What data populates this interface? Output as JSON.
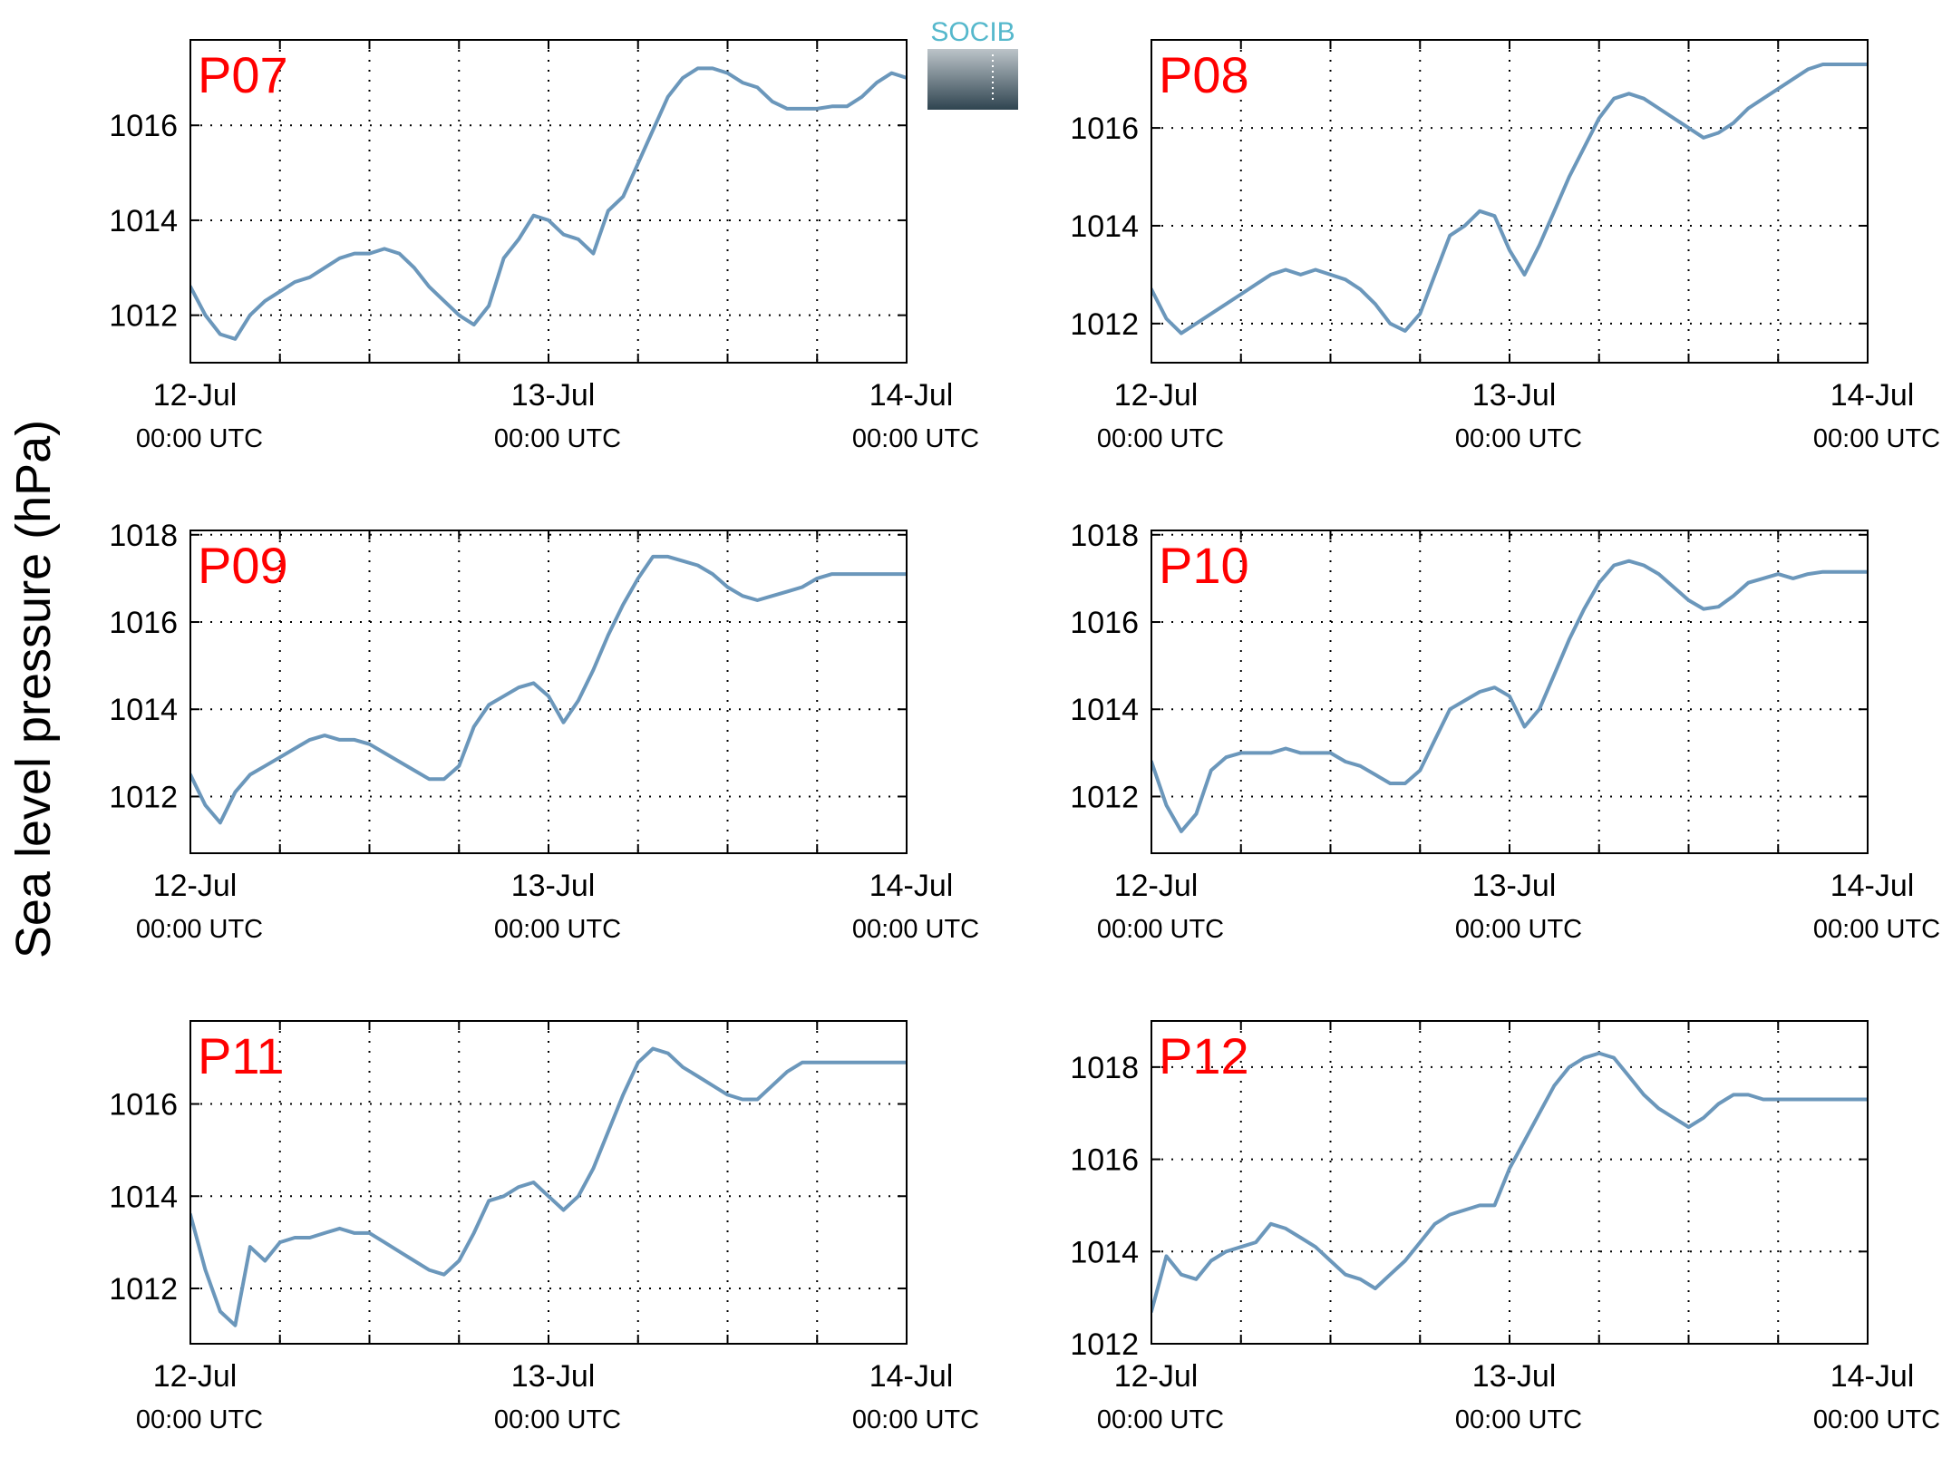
{
  "figure": {
    "ylabel": "Sea level pressure (hPa)",
    "label_color": "#ff0000",
    "line_color": "#6b97bb"
  },
  "logo": {
    "text": "SOCIB"
  },
  "chart_data": [
    {
      "type": "line",
      "label": "P07",
      "ylim": [
        1011,
        1017.8
      ],
      "yticks": [
        1012,
        1014,
        1016
      ],
      "x_hours": [
        0,
        2,
        4,
        6,
        8,
        10,
        12,
        14,
        16,
        18,
        20,
        22,
        24,
        26,
        28,
        30,
        32,
        34,
        36,
        38,
        40,
        42,
        44,
        46,
        48,
        50,
        52,
        54,
        56,
        58,
        60,
        62,
        64,
        66,
        68,
        70,
        72,
        74,
        76,
        78,
        80,
        82,
        84,
        86,
        88,
        90,
        92,
        94,
        96
      ],
      "values": [
        1012.6,
        1012.0,
        1011.6,
        1011.5,
        1012.0,
        1012.3,
        1012.5,
        1012.7,
        1012.8,
        1013.0,
        1013.2,
        1013.3,
        1013.3,
        1013.4,
        1013.3,
        1013.0,
        1012.6,
        1012.3,
        1012.0,
        1011.8,
        1012.2,
        1013.2,
        1013.6,
        1014.1,
        1014.0,
        1013.7,
        1013.6,
        1013.3,
        1014.2,
        1014.5,
        1015.2,
        1015.9,
        1016.6,
        1017.0,
        1017.2,
        1017.2,
        1017.1,
        1016.9,
        1016.8,
        1016.5,
        1016.35,
        1016.35,
        1016.35,
        1016.4,
        1016.4,
        1016.6,
        1016.9,
        1017.1,
        1017.0
      ],
      "xtick_dates": [
        "12-Jul",
        "13-Jul",
        "14-Jul"
      ],
      "xtick_times": [
        "00:00 UTC",
        "00:00 UTC",
        "00:00 UTC"
      ]
    },
    {
      "type": "line",
      "label": "P08",
      "ylim": [
        1011.2,
        1017.8
      ],
      "yticks": [
        1012,
        1014,
        1016
      ],
      "x_hours": [
        0,
        2,
        4,
        6,
        8,
        10,
        12,
        14,
        16,
        18,
        20,
        22,
        24,
        26,
        28,
        30,
        32,
        34,
        36,
        38,
        40,
        42,
        44,
        46,
        48,
        50,
        52,
        54,
        56,
        58,
        60,
        62,
        64,
        66,
        68,
        70,
        72,
        74,
        76,
        78,
        80,
        82,
        84,
        86,
        88,
        90,
        92,
        94,
        96
      ],
      "values": [
        1012.7,
        1012.1,
        1011.8,
        1012.0,
        1012.2,
        1012.4,
        1012.6,
        1012.8,
        1013.0,
        1013.1,
        1013.0,
        1013.1,
        1013.0,
        1012.9,
        1012.7,
        1012.4,
        1012.0,
        1011.85,
        1012.2,
        1013.0,
        1013.8,
        1014.0,
        1014.3,
        1014.2,
        1013.5,
        1013.0,
        1013.6,
        1014.3,
        1015.0,
        1015.6,
        1016.2,
        1016.6,
        1016.7,
        1016.6,
        1016.4,
        1016.2,
        1016.0,
        1015.8,
        1015.9,
        1016.1,
        1016.4,
        1016.6,
        1016.8,
        1017.0,
        1017.2,
        1017.3,
        1017.3,
        1017.3,
        1017.3
      ],
      "xtick_dates": [
        "12-Jul",
        "13-Jul",
        "14-Jul"
      ],
      "xtick_times": [
        "00:00 UTC",
        "00:00 UTC",
        "00:00 UTC"
      ]
    },
    {
      "type": "line",
      "label": "P09",
      "ylim": [
        1010.7,
        1018.1
      ],
      "yticks": [
        1012,
        1014,
        1016,
        1018
      ],
      "x_hours": [
        0,
        2,
        4,
        6,
        8,
        10,
        12,
        14,
        16,
        18,
        20,
        22,
        24,
        26,
        28,
        30,
        32,
        34,
        36,
        38,
        40,
        42,
        44,
        46,
        48,
        50,
        52,
        54,
        56,
        58,
        60,
        62,
        64,
        66,
        68,
        70,
        72,
        74,
        76,
        78,
        80,
        82,
        84,
        86,
        88,
        90,
        92,
        94,
        96
      ],
      "values": [
        1012.5,
        1011.8,
        1011.4,
        1012.1,
        1012.5,
        1012.7,
        1012.9,
        1013.1,
        1013.3,
        1013.4,
        1013.3,
        1013.3,
        1013.2,
        1013.0,
        1012.8,
        1012.6,
        1012.4,
        1012.4,
        1012.7,
        1013.6,
        1014.1,
        1014.3,
        1014.5,
        1014.6,
        1014.3,
        1013.7,
        1014.2,
        1014.9,
        1015.7,
        1016.4,
        1017.0,
        1017.5,
        1017.5,
        1017.4,
        1017.3,
        1017.1,
        1016.8,
        1016.6,
        1016.5,
        1016.6,
        1016.7,
        1016.8,
        1017.0,
        1017.1,
        1017.1,
        1017.1,
        1017.1,
        1017.1,
        1017.1
      ],
      "xtick_dates": [
        "12-Jul",
        "13-Jul",
        "14-Jul"
      ],
      "xtick_times": [
        "00:00 UTC",
        "00:00 UTC",
        "00:00 UTC"
      ]
    },
    {
      "type": "line",
      "label": "P10",
      "ylim": [
        1010.7,
        1018.1
      ],
      "yticks": [
        1012,
        1014,
        1016,
        1018
      ],
      "x_hours": [
        0,
        2,
        4,
        6,
        8,
        10,
        12,
        14,
        16,
        18,
        20,
        22,
        24,
        26,
        28,
        30,
        32,
        34,
        36,
        38,
        40,
        42,
        44,
        46,
        48,
        50,
        52,
        54,
        56,
        58,
        60,
        62,
        64,
        66,
        68,
        70,
        72,
        74,
        76,
        78,
        80,
        82,
        84,
        86,
        88,
        90,
        92,
        94,
        96
      ],
      "values": [
        1012.8,
        1011.8,
        1011.2,
        1011.6,
        1012.6,
        1012.9,
        1013.0,
        1013.0,
        1013.0,
        1013.1,
        1013.0,
        1013.0,
        1013.0,
        1012.8,
        1012.7,
        1012.5,
        1012.3,
        1012.3,
        1012.6,
        1013.3,
        1014.0,
        1014.2,
        1014.4,
        1014.5,
        1014.3,
        1013.6,
        1014.0,
        1014.8,
        1015.6,
        1016.3,
        1016.9,
        1017.3,
        1017.4,
        1017.3,
        1017.1,
        1016.8,
        1016.5,
        1016.3,
        1016.35,
        1016.6,
        1016.9,
        1017.0,
        1017.1,
        1017.0,
        1017.1,
        1017.15,
        1017.15,
        1017.15,
        1017.15
      ],
      "xtick_dates": [
        "12-Jul",
        "13-Jul",
        "14-Jul"
      ],
      "xtick_times": [
        "00:00 UTC",
        "00:00 UTC",
        "00:00 UTC"
      ]
    },
    {
      "type": "line",
      "label": "P11",
      "ylim": [
        1010.8,
        1017.8
      ],
      "yticks": [
        1012,
        1014,
        1016
      ],
      "x_hours": [
        0,
        2,
        4,
        6,
        8,
        10,
        12,
        14,
        16,
        18,
        20,
        22,
        24,
        26,
        28,
        30,
        32,
        34,
        36,
        38,
        40,
        42,
        44,
        46,
        48,
        50,
        52,
        54,
        56,
        58,
        60,
        62,
        64,
        66,
        68,
        70,
        72,
        74,
        76,
        78,
        80,
        82,
        84,
        86,
        88,
        90,
        92,
        94,
        96
      ],
      "values": [
        1013.6,
        1012.4,
        1011.5,
        1011.2,
        1012.9,
        1012.6,
        1013.0,
        1013.1,
        1013.1,
        1013.2,
        1013.3,
        1013.2,
        1013.2,
        1013.0,
        1012.8,
        1012.6,
        1012.4,
        1012.3,
        1012.6,
        1013.2,
        1013.9,
        1014.0,
        1014.2,
        1014.3,
        1014.0,
        1013.7,
        1014.0,
        1014.6,
        1015.4,
        1016.2,
        1016.9,
        1017.2,
        1017.1,
        1016.8,
        1016.6,
        1016.4,
        1016.2,
        1016.1,
        1016.1,
        1016.4,
        1016.7,
        1016.9,
        1016.9,
        1016.9,
        1016.9,
        1016.9,
        1016.9,
        1016.9,
        1016.9
      ],
      "xtick_dates": [
        "12-Jul",
        "13-Jul",
        "14-Jul"
      ],
      "xtick_times": [
        "00:00 UTC",
        "00:00 UTC",
        "00:00 UTC"
      ]
    },
    {
      "type": "line",
      "label": "P12",
      "ylim": [
        1012,
        1019
      ],
      "yticks": [
        1012,
        1014,
        1016,
        1018
      ],
      "x_hours": [
        0,
        2,
        4,
        6,
        8,
        10,
        12,
        14,
        16,
        18,
        20,
        22,
        24,
        26,
        28,
        30,
        32,
        34,
        36,
        38,
        40,
        42,
        44,
        46,
        48,
        50,
        52,
        54,
        56,
        58,
        60,
        62,
        64,
        66,
        68,
        70,
        72,
        74,
        76,
        78,
        80,
        82,
        84,
        86,
        88,
        90,
        92,
        94,
        96
      ],
      "values": [
        1012.7,
        1013.9,
        1013.5,
        1013.4,
        1013.8,
        1014.0,
        1014.1,
        1014.2,
        1014.6,
        1014.5,
        1014.3,
        1014.1,
        1013.8,
        1013.5,
        1013.4,
        1013.2,
        1013.5,
        1013.8,
        1014.2,
        1014.6,
        1014.8,
        1014.9,
        1015.0,
        1015.0,
        1015.8,
        1016.4,
        1017.0,
        1017.6,
        1018.0,
        1018.2,
        1018.3,
        1018.2,
        1017.8,
        1017.4,
        1017.1,
        1016.9,
        1016.7,
        1016.9,
        1017.2,
        1017.4,
        1017.4,
        1017.3,
        1017.3,
        1017.3,
        1017.3,
        1017.3,
        1017.3,
        1017.3,
        1017.3
      ],
      "xtick_dates": [
        "12-Jul",
        "13-Jul",
        "14-Jul"
      ],
      "xtick_times": [
        "00:00 UTC",
        "00:00 UTC",
        "00:00 UTC"
      ]
    }
  ]
}
